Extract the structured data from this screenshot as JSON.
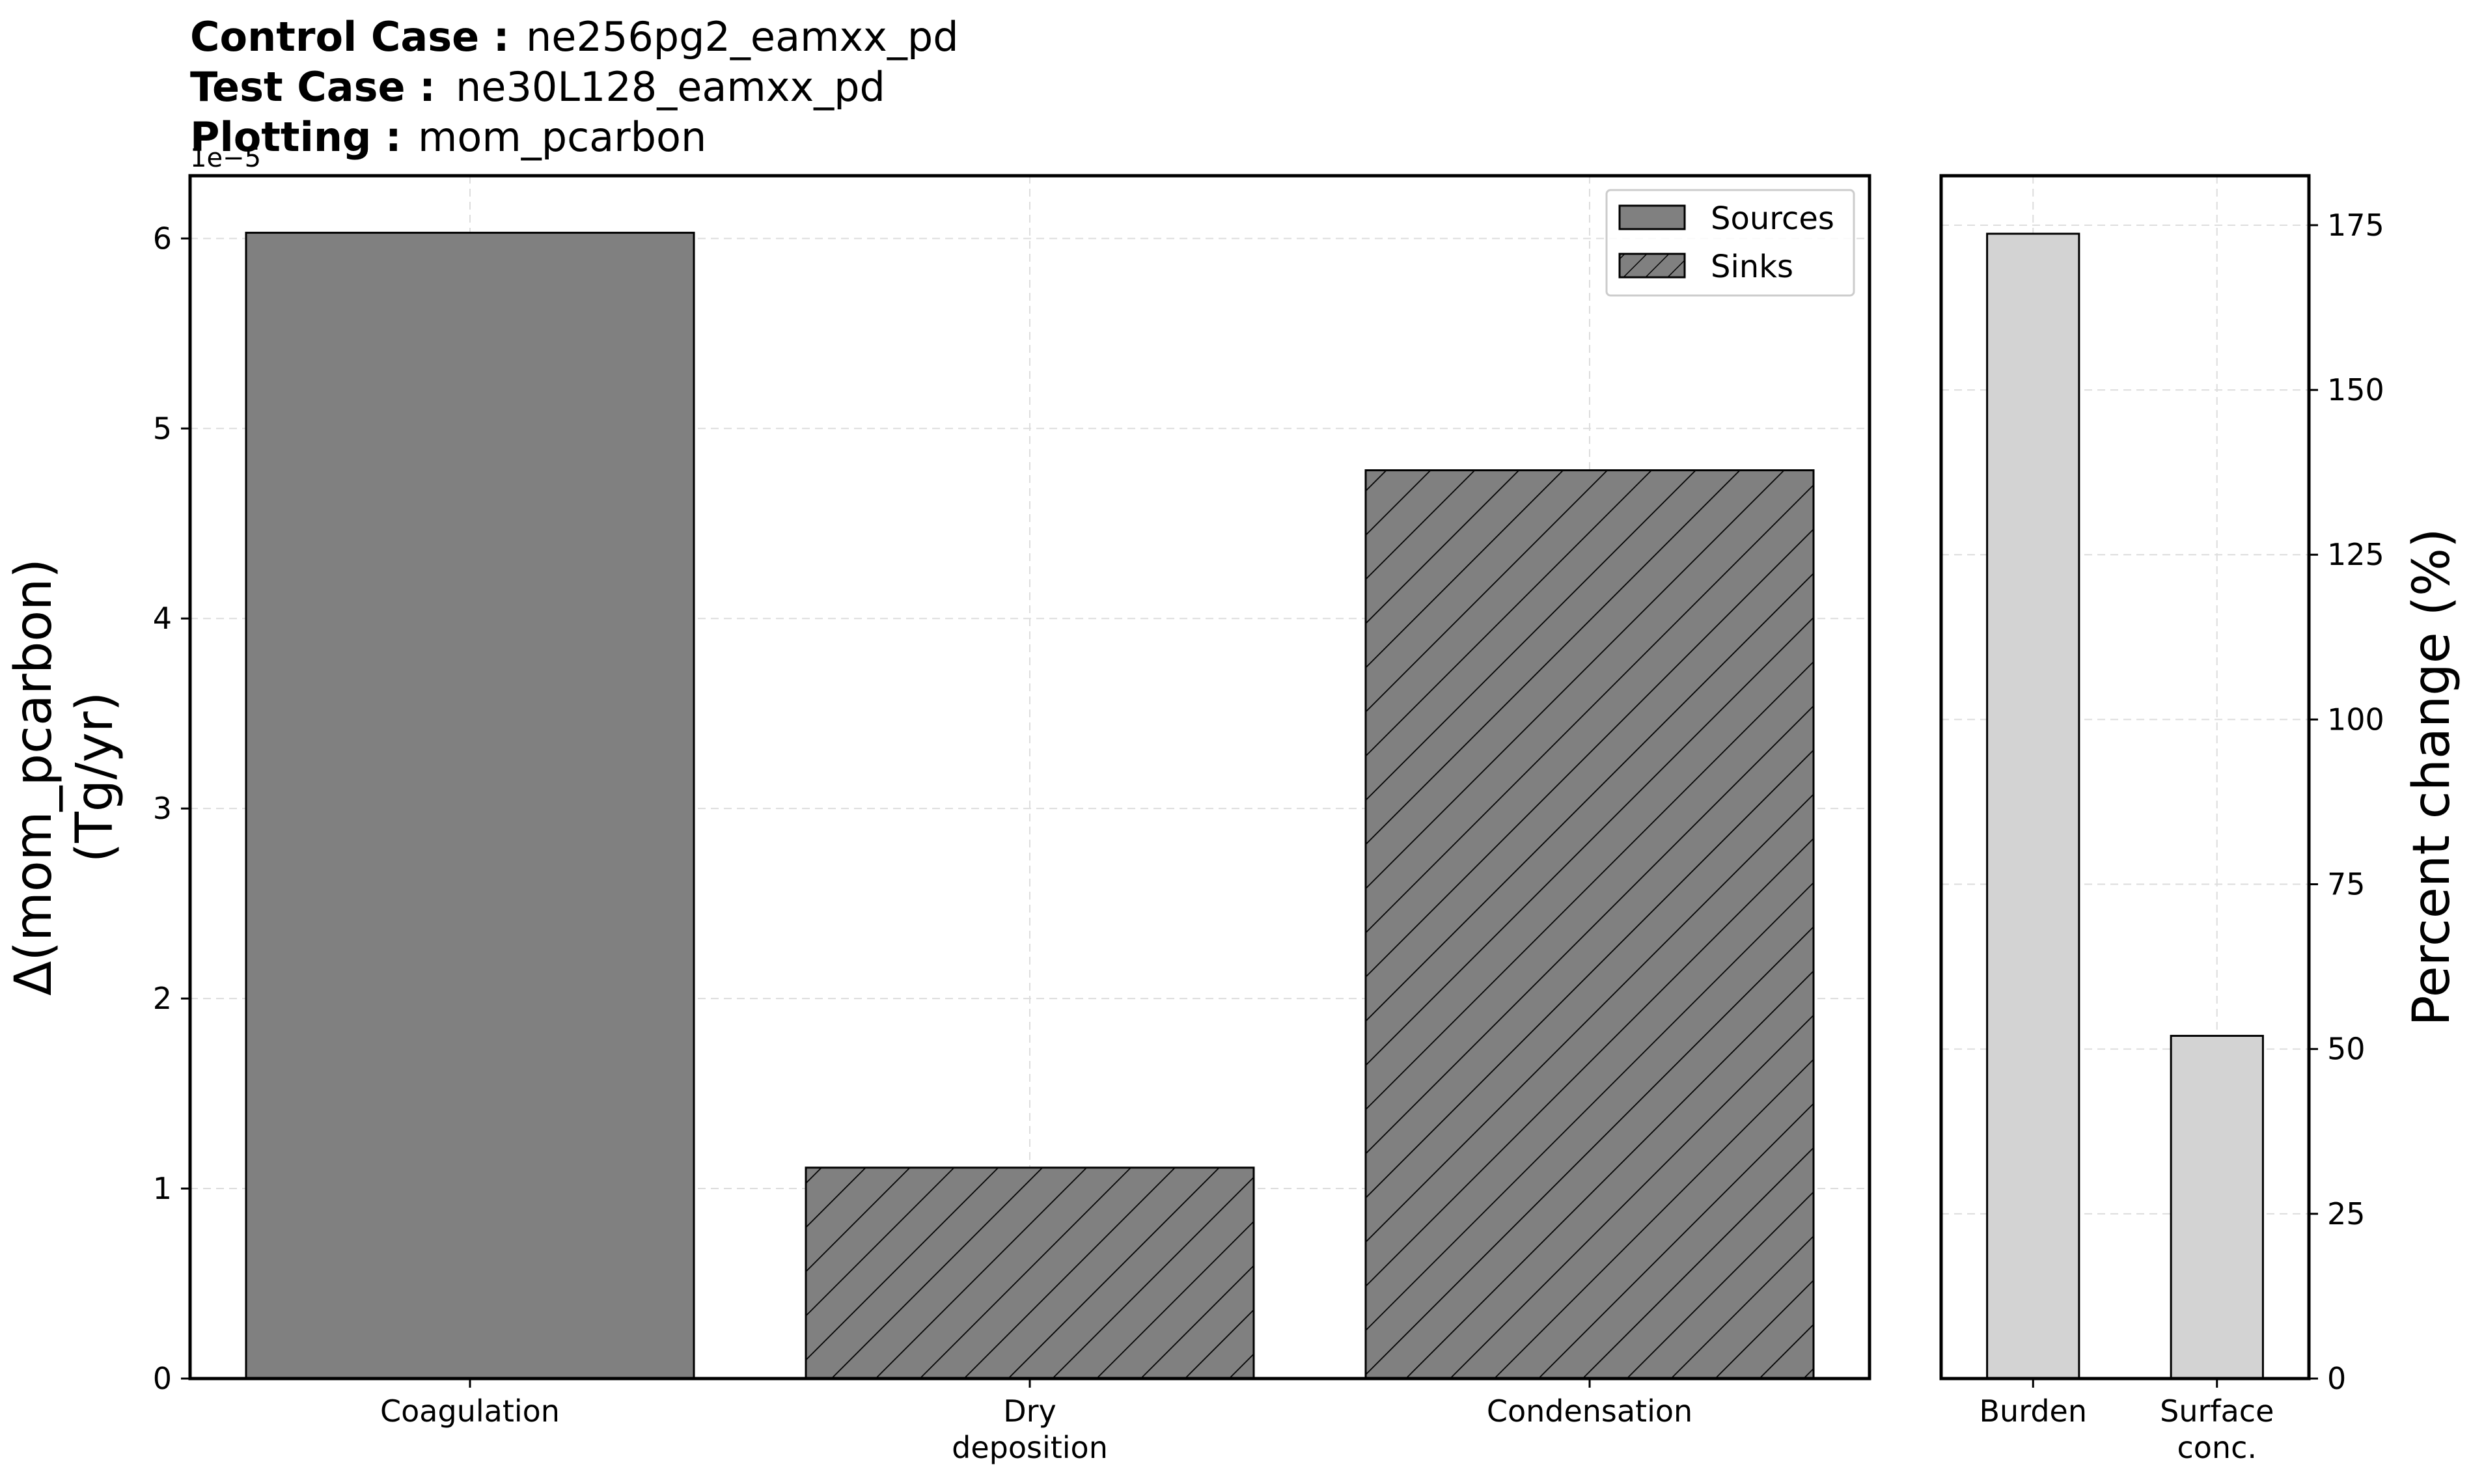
{
  "header": {
    "control_label": "Control Case :",
    "control_value": "ne256pg2_eamxx_pd",
    "test_label": "Test Case :",
    "test_value": "ne30L128_eamxx_pd",
    "plotting_label": "Plotting :",
    "plotting_value": "mom_pcarbon"
  },
  "chart_data": [
    {
      "type": "bar",
      "categories": [
        "Coagulation",
        "Dry\ndeposition",
        "Condensation"
      ],
      "values": [
        6.03e-05,
        1.11e-05,
        4.78e-05
      ],
      "bar_kinds": [
        "source",
        "sink",
        "sink"
      ],
      "ylabel_line1": "Δ(mom_pcarbon)",
      "ylabel_line2": "(Tg/yr)",
      "ylim": [
        0,
        6.33e-05
      ],
      "yticks": [
        0,
        1,
        2,
        3,
        4,
        5,
        6
      ],
      "offset_text": "1e−5",
      "legend": [
        {
          "label": "Sources",
          "hatched": false
        },
        {
          "label": "Sinks",
          "hatched": true
        }
      ],
      "legend_position": "top-right",
      "grid": true,
      "bar_color": "#808080"
    },
    {
      "type": "bar",
      "categories": [
        "Burden",
        "Surface\nconc."
      ],
      "values": [
        173.7,
        52.0
      ],
      "ylabel": "Percent change (%)",
      "ylim": [
        0,
        182.5
      ],
      "yticks": [
        0,
        25,
        50,
        75,
        100,
        125,
        150,
        175
      ],
      "yaxis_side": "right",
      "grid": true,
      "bar_color": "#d3d3d3"
    }
  ]
}
